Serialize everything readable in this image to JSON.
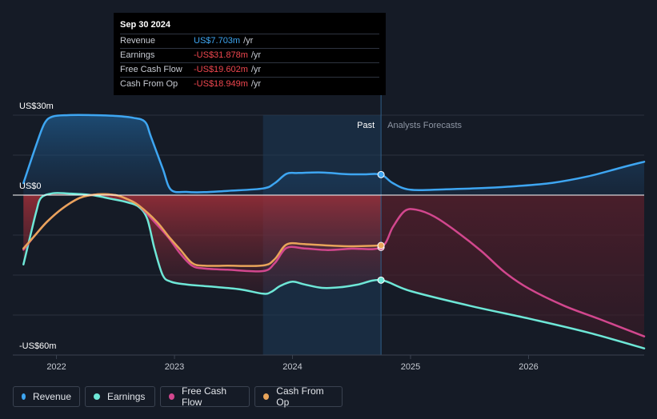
{
  "tooltip": {
    "date": "Sep 30 2024",
    "rows": [
      {
        "label": "Revenue",
        "value": "US$7.703m",
        "unit": "/yr",
        "color": "#3ea6f2"
      },
      {
        "label": "Earnings",
        "value": "-US$31.878m",
        "unit": "/yr",
        "color": "#f0474f"
      },
      {
        "label": "Free Cash Flow",
        "value": "-US$19.602m",
        "unit": "/yr",
        "color": "#f0474f"
      },
      {
        "label": "Cash From Op",
        "value": "-US$18.949m",
        "unit": "/yr",
        "color": "#f0474f"
      }
    ]
  },
  "labels": {
    "past": "Past",
    "forecast": "Analysts Forecasts"
  },
  "legend": [
    {
      "label": "Revenue",
      "color": "#3ea6f2"
    },
    {
      "label": "Earnings",
      "color": "#6ee7d7"
    },
    {
      "label": "Free Cash Flow",
      "color": "#d2478e"
    },
    {
      "label": "Cash From Op",
      "color": "#e8a45a"
    }
  ],
  "chart_data": {
    "type": "line",
    "y_unit": "US$ millions",
    "ylim": [
      -60,
      30
    ],
    "yticks": [
      {
        "value": 30,
        "label": "US$30m"
      },
      {
        "value": 0,
        "label": "US$0"
      },
      {
        "value": -60,
        "label": "-US$60m"
      }
    ],
    "xlim": [
      2021.63,
      2026.98
    ],
    "xticks": [
      2022,
      2023,
      2024,
      2025,
      2026
    ],
    "highlight_start": 2023.75,
    "present": 2024.75,
    "series": [
      {
        "name": "Revenue",
        "color": "#3ea6f2",
        "points": [
          [
            2021.72,
            4.5
          ],
          [
            2021.83,
            19
          ],
          [
            2021.9,
            27
          ],
          [
            2021.97,
            29.5
          ],
          [
            2022.1,
            30
          ],
          [
            2022.3,
            30
          ],
          [
            2022.5,
            29.7
          ],
          [
            2022.65,
            29
          ],
          [
            2022.75,
            27.5
          ],
          [
            2022.8,
            22
          ],
          [
            2022.9,
            10
          ],
          [
            2022.97,
            2
          ],
          [
            2023.1,
            1.2
          ],
          [
            2023.25,
            1.1
          ],
          [
            2023.45,
            1.6
          ],
          [
            2023.75,
            2.5
          ],
          [
            2023.85,
            4.5
          ],
          [
            2023.95,
            8
          ],
          [
            2024.05,
            8.3
          ],
          [
            2024.25,
            8.5
          ],
          [
            2024.45,
            7.9
          ],
          [
            2024.6,
            7.8
          ],
          [
            2024.75,
            7.7
          ]
        ],
        "forecast": [
          [
            2024.75,
            7.7
          ],
          [
            2024.85,
            4.5
          ],
          [
            2025.0,
            2
          ],
          [
            2025.3,
            2.2
          ],
          [
            2025.6,
            2.6
          ],
          [
            2025.9,
            3.4
          ],
          [
            2026.2,
            4.6
          ],
          [
            2026.5,
            7
          ],
          [
            2026.8,
            10.5
          ],
          [
            2026.98,
            12.5
          ]
        ]
      },
      {
        "name": "Earnings",
        "color": "#6ee7d7",
        "points": [
          [
            2021.72,
            -26
          ],
          [
            2021.78,
            -15
          ],
          [
            2021.83,
            -6
          ],
          [
            2021.87,
            -1
          ],
          [
            2021.97,
            0.7
          ],
          [
            2022.1,
            0.6
          ],
          [
            2022.3,
            0
          ],
          [
            2022.45,
            -1.3
          ],
          [
            2022.6,
            -2.7
          ],
          [
            2022.7,
            -4.5
          ],
          [
            2022.77,
            -9
          ],
          [
            2022.83,
            -20
          ],
          [
            2022.9,
            -30
          ],
          [
            2022.97,
            -32.5
          ],
          [
            2023.1,
            -33.5
          ],
          [
            2023.3,
            -34.3
          ],
          [
            2023.55,
            -35.3
          ],
          [
            2023.75,
            -37
          ],
          [
            2023.82,
            -36.3
          ],
          [
            2023.9,
            -34
          ],
          [
            2024.0,
            -32.5
          ],
          [
            2024.1,
            -33.5
          ],
          [
            2024.25,
            -34.8
          ],
          [
            2024.4,
            -34.6
          ],
          [
            2024.55,
            -33.6
          ],
          [
            2024.75,
            -31.9
          ]
        ],
        "forecast": [
          [
            2024.75,
            -31.9
          ],
          [
            2025.0,
            -36
          ],
          [
            2025.5,
            -41.5
          ],
          [
            2026.0,
            -46.3
          ],
          [
            2026.5,
            -51.5
          ],
          [
            2026.98,
            -57.5
          ]
        ]
      },
      {
        "name": "Free Cash Flow",
        "color": "#d2478e",
        "points": [
          [
            2021.72,
            -20.5
          ],
          [
            2021.82,
            -15
          ],
          [
            2021.92,
            -10
          ],
          [
            2022.05,
            -5
          ],
          [
            2022.2,
            -1
          ],
          [
            2022.35,
            0.3
          ],
          [
            2022.5,
            0
          ],
          [
            2022.6,
            -1.5
          ],
          [
            2022.7,
            -4
          ],
          [
            2022.85,
            -11
          ],
          [
            2022.95,
            -16
          ],
          [
            2023.05,
            -22
          ],
          [
            2023.15,
            -26.5
          ],
          [
            2023.25,
            -27.5
          ],
          [
            2023.45,
            -28
          ],
          [
            2023.75,
            -28.5
          ],
          [
            2023.85,
            -25.5
          ],
          [
            2023.95,
            -19.8
          ],
          [
            2024.1,
            -20
          ],
          [
            2024.3,
            -20.6
          ],
          [
            2024.5,
            -20.1
          ],
          [
            2024.75,
            -19.6
          ]
        ],
        "forecast": [
          [
            2024.75,
            -19.6
          ],
          [
            2024.85,
            -12
          ],
          [
            2024.95,
            -6
          ],
          [
            2025.05,
            -5.5
          ],
          [
            2025.2,
            -8
          ],
          [
            2025.4,
            -14
          ],
          [
            2025.6,
            -21
          ],
          [
            2025.8,
            -29
          ],
          [
            2026.0,
            -35
          ],
          [
            2026.3,
            -41.5
          ],
          [
            2026.6,
            -46.5
          ],
          [
            2026.98,
            -53
          ]
        ]
      },
      {
        "name": "Cash From Op",
        "color": "#e8a45a",
        "points": [
          [
            2021.72,
            -20
          ],
          [
            2021.82,
            -15
          ],
          [
            2021.92,
            -10
          ],
          [
            2022.05,
            -5
          ],
          [
            2022.2,
            -1
          ],
          [
            2022.35,
            0.3
          ],
          [
            2022.5,
            0
          ],
          [
            2022.6,
            -1.5
          ],
          [
            2022.7,
            -4
          ],
          [
            2022.85,
            -10
          ],
          [
            2022.95,
            -15.5
          ],
          [
            2023.05,
            -20.5
          ],
          [
            2023.15,
            -25.5
          ],
          [
            2023.25,
            -26.5
          ],
          [
            2023.45,
            -26.5
          ],
          [
            2023.75,
            -26.4
          ],
          [
            2023.85,
            -24
          ],
          [
            2023.95,
            -18.5
          ],
          [
            2024.1,
            -18.4
          ],
          [
            2024.3,
            -18.9
          ],
          [
            2024.5,
            -19.2
          ],
          [
            2024.75,
            -18.9
          ]
        ],
        "forecast": []
      }
    ]
  }
}
